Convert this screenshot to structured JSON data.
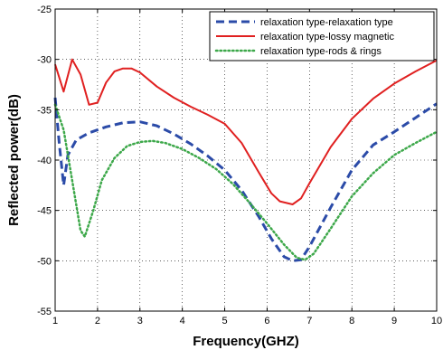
{
  "chart_data": {
    "type": "line",
    "title": "",
    "xlabel": "Frequency(GHZ)",
    "ylabel": "Reflected power(dB)",
    "xlim": [
      1,
      10
    ],
    "ylim": [
      -55,
      -25
    ],
    "xticks": [
      1,
      2,
      3,
      4,
      5,
      6,
      7,
      8,
      9,
      10
    ],
    "yticks": [
      -55,
      -50,
      -45,
      -40,
      -35,
      -30,
      -25
    ],
    "grid": true,
    "legend_position": "top-right",
    "series": [
      {
        "name": "relaxation type-relaxation type",
        "color": "#2B4BA8",
        "style": "dashed",
        "x": [
          1.0,
          1.1,
          1.2,
          1.3,
          1.5,
          1.8,
          2.2,
          2.6,
          3.0,
          3.4,
          3.8,
          4.2,
          4.6,
          5.0,
          5.4,
          5.8,
          6.1,
          6.4,
          6.6,
          6.8,
          7.0,
          7.5,
          8.0,
          8.5,
          9.0,
          9.5,
          10.0
        ],
        "y": [
          -33.8,
          -38.5,
          -42.5,
          -39.5,
          -38.0,
          -37.3,
          -36.7,
          -36.3,
          -36.2,
          -36.6,
          -37.4,
          -38.4,
          -39.6,
          -41.0,
          -43.0,
          -45.6,
          -47.8,
          -49.6,
          -50.0,
          -49.9,
          -48.6,
          -44.7,
          -41.0,
          -38.5,
          -37.2,
          -35.8,
          -34.4
        ]
      },
      {
        "name": "relaxation type-lossy magnetic",
        "color": "#E02020",
        "style": "solid",
        "x": [
          1.0,
          1.2,
          1.4,
          1.6,
          1.8,
          2.0,
          2.2,
          2.4,
          2.6,
          2.8,
          3.0,
          3.4,
          3.8,
          4.2,
          4.6,
          5.0,
          5.4,
          5.8,
          6.1,
          6.3,
          6.5,
          6.6,
          6.8,
          7.0,
          7.5,
          8.0,
          8.5,
          9.0,
          9.5,
          10.0
        ],
        "y": [
          -30.5,
          -33.2,
          -30.0,
          -31.5,
          -34.5,
          -34.3,
          -32.3,
          -31.2,
          -30.9,
          -30.9,
          -31.3,
          -32.7,
          -33.8,
          -34.7,
          -35.5,
          -36.4,
          -38.3,
          -41.2,
          -43.3,
          -44.1,
          -44.3,
          -44.4,
          -43.8,
          -42.3,
          -38.7,
          -35.9,
          -33.9,
          -32.4,
          -31.2,
          -30.1
        ]
      },
      {
        "name": "relaxation type-rods & rings",
        "color": "#3DA84A",
        "style": "dotted",
        "x": [
          1.0,
          1.2,
          1.4,
          1.6,
          1.7,
          1.9,
          2.1,
          2.4,
          2.7,
          3.0,
          3.3,
          3.6,
          4.0,
          4.4,
          4.8,
          5.2,
          5.6,
          6.0,
          6.4,
          6.7,
          6.9,
          7.1,
          7.5,
          8.0,
          8.5,
          9.0,
          9.5,
          10.0
        ],
        "y": [
          -34.5,
          -37.0,
          -42.0,
          -47.0,
          -47.6,
          -45.0,
          -42.0,
          -39.8,
          -38.6,
          -38.2,
          -38.1,
          -38.3,
          -38.9,
          -39.8,
          -40.9,
          -42.4,
          -44.3,
          -46.3,
          -48.4,
          -49.7,
          -49.9,
          -49.3,
          -46.8,
          -43.6,
          -41.3,
          -39.5,
          -38.3,
          -37.2
        ]
      }
    ]
  }
}
